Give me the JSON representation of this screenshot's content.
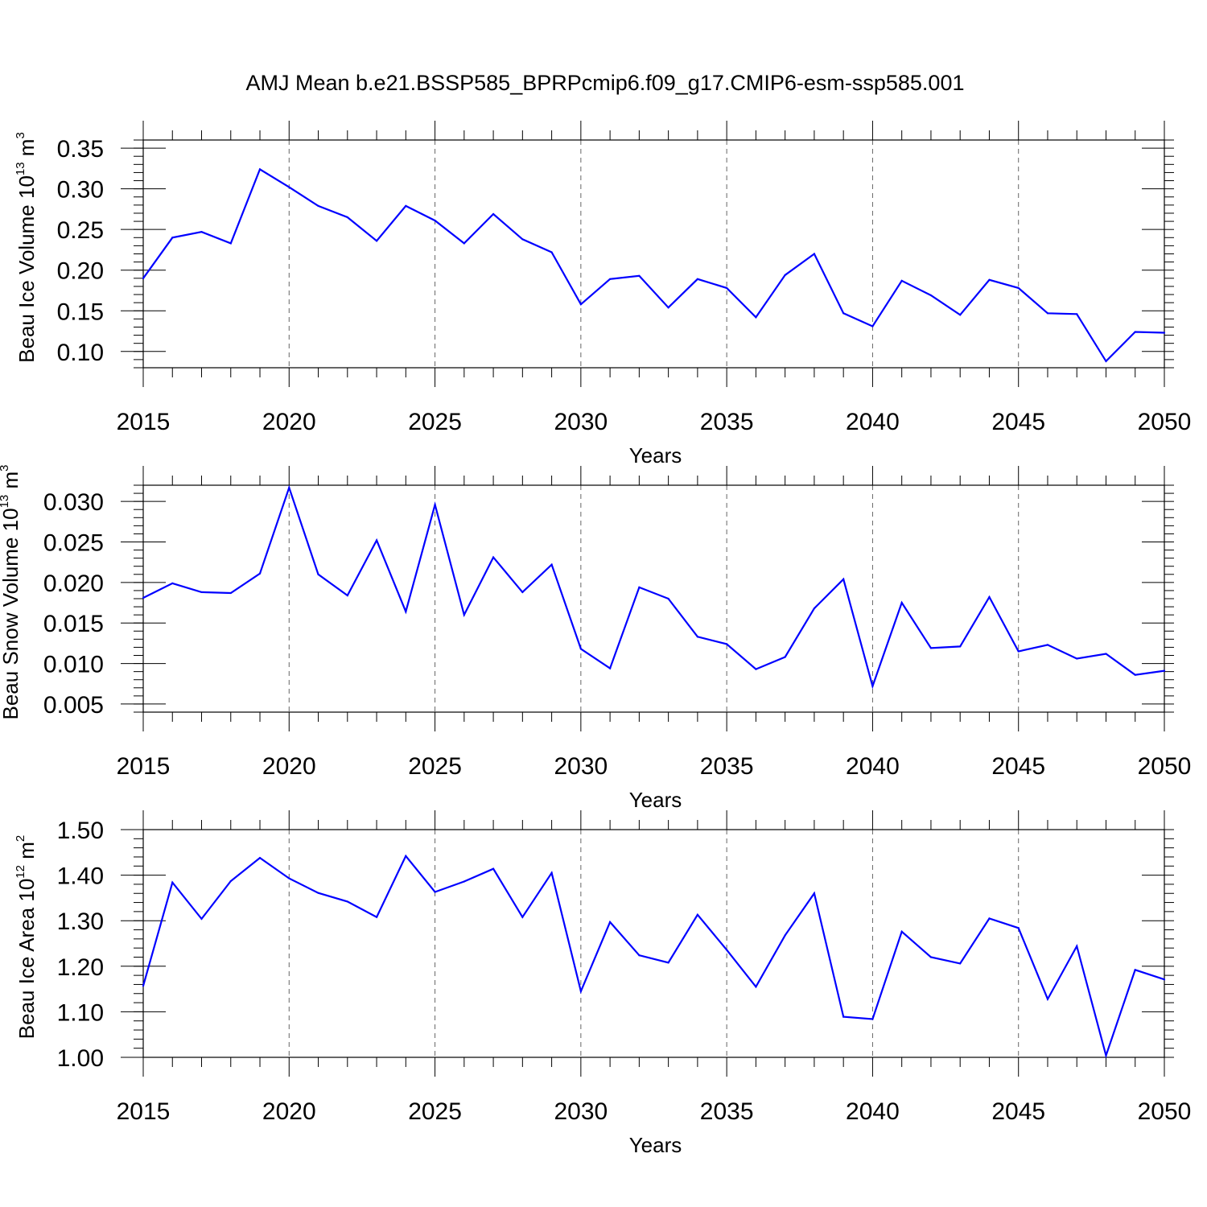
{
  "figure": {
    "title": "AMJ Mean b.e21.BSSP585_BPRPcmip6.f09_g17.CMIP6-esm-ssp585.001"
  },
  "chart_data": [
    {
      "type": "line",
      "xlabel": "Years",
      "ylabel_parts": {
        "base": "Beau Ice Volume 10",
        "exp": "13",
        "unit": " m",
        "unit_exp": "3"
      },
      "xlim": [
        2015,
        2050
      ],
      "ylim": [
        0.08,
        0.36
      ],
      "xticks": [
        2015,
        2020,
        2025,
        2030,
        2035,
        2040,
        2045,
        2050
      ],
      "xtick_labels": [
        "2015",
        "2020",
        "2025",
        "2030",
        "2035",
        "2040",
        "2045",
        "2050"
      ],
      "yticks": [
        0.1,
        0.15,
        0.2,
        0.25,
        0.3,
        0.35
      ],
      "ytick_labels": [
        "0.10",
        "0.15",
        "0.20",
        "0.25",
        "0.30",
        "0.35"
      ],
      "grid": "vertical dashed at labeled years",
      "line_color": "#0000ff",
      "x": [
        2015,
        2016,
        2017,
        2018,
        2019,
        2020,
        2021,
        2022,
        2023,
        2024,
        2025,
        2026,
        2027,
        2028,
        2029,
        2030,
        2031,
        2032,
        2033,
        2034,
        2035,
        2036,
        2037,
        2038,
        2039,
        2040,
        2041,
        2042,
        2043,
        2044,
        2045,
        2046,
        2047,
        2048,
        2049,
        2050
      ],
      "y": [
        0.19,
        0.24,
        0.247,
        0.233,
        0.324,
        0.302,
        0.279,
        0.265,
        0.236,
        0.279,
        0.261,
        0.233,
        0.269,
        0.238,
        0.222,
        0.158,
        0.189,
        0.193,
        0.154,
        0.189,
        0.178,
        0.142,
        0.194,
        0.22,
        0.147,
        0.131,
        0.187,
        0.169,
        0.145,
        0.188,
        0.178,
        0.147,
        0.146,
        0.088,
        0.124,
        0.123
      ]
    },
    {
      "type": "line",
      "xlabel": "Years",
      "ylabel_parts": {
        "base": "Beau Snow Volume 10",
        "exp": "13",
        "unit": " m",
        "unit_exp": "3"
      },
      "xlim": [
        2015,
        2050
      ],
      "ylim": [
        0.004,
        0.032
      ],
      "xticks": [
        2015,
        2020,
        2025,
        2030,
        2035,
        2040,
        2045,
        2050
      ],
      "xtick_labels": [
        "2015",
        "2020",
        "2025",
        "2030",
        "2035",
        "2040",
        "2045",
        "2050"
      ],
      "yticks": [
        0.005,
        0.01,
        0.015,
        0.02,
        0.025,
        0.03
      ],
      "ytick_labels": [
        "0.005",
        "0.010",
        "0.015",
        "0.020",
        "0.025",
        "0.030"
      ],
      "grid": "vertical dashed at labeled years",
      "line_color": "#0000ff",
      "x": [
        2015,
        2016,
        2017,
        2018,
        2019,
        2020,
        2021,
        2022,
        2023,
        2024,
        2025,
        2026,
        2027,
        2028,
        2029,
        2030,
        2031,
        2032,
        2033,
        2034,
        2035,
        2036,
        2037,
        2038,
        2039,
        2040,
        2041,
        2042,
        2043,
        2044,
        2045,
        2046,
        2047,
        2048,
        2049,
        2050
      ],
      "y": [
        0.0181,
        0.0199,
        0.0188,
        0.0187,
        0.0211,
        0.0317,
        0.021,
        0.0184,
        0.0252,
        0.0164,
        0.0296,
        0.016,
        0.0231,
        0.0188,
        0.0222,
        0.0118,
        0.0094,
        0.0194,
        0.018,
        0.0133,
        0.0124,
        0.0093,
        0.0108,
        0.0168,
        0.0204,
        0.0072,
        0.0175,
        0.0119,
        0.0121,
        0.0182,
        0.0115,
        0.0123,
        0.0106,
        0.0112,
        0.0086,
        0.0091
      ]
    },
    {
      "type": "line",
      "xlabel": "Years",
      "ylabel_parts": {
        "base": "Beau Ice Area 10",
        "exp": "12",
        "unit": " m",
        "unit_exp": "2"
      },
      "xlim": [
        2015,
        2050
      ],
      "ylim": [
        1.0,
        1.5
      ],
      "xticks": [
        2015,
        2020,
        2025,
        2030,
        2035,
        2040,
        2045,
        2050
      ],
      "xtick_labels": [
        "2015",
        "2020",
        "2025",
        "2030",
        "2035",
        "2040",
        "2045",
        "2050"
      ],
      "yticks": [
        1.0,
        1.1,
        1.2,
        1.3,
        1.4,
        1.5
      ],
      "ytick_labels": [
        "1.00",
        "1.10",
        "1.20",
        "1.30",
        "1.40",
        "1.50"
      ],
      "grid": "vertical dashed at labeled years",
      "line_color": "#0000ff",
      "x": [
        2015,
        2016,
        2017,
        2018,
        2019,
        2020,
        2021,
        2022,
        2023,
        2024,
        2025,
        2026,
        2027,
        2028,
        2029,
        2030,
        2031,
        2032,
        2033,
        2034,
        2035,
        2036,
        2037,
        2038,
        2039,
        2040,
        2041,
        2042,
        2043,
        2044,
        2045,
        2046,
        2047,
        2048,
        2049,
        2050
      ],
      "y": [
        1.157,
        1.384,
        1.304,
        1.387,
        1.438,
        1.393,
        1.361,
        1.342,
        1.308,
        1.442,
        1.363,
        1.386,
        1.414,
        1.308,
        1.405,
        1.145,
        1.297,
        1.224,
        1.208,
        1.313,
        1.236,
        1.155,
        1.268,
        1.36,
        1.089,
        1.084,
        1.276,
        1.22,
        1.206,
        1.305,
        1.284,
        1.128,
        1.244,
        1.004,
        1.192,
        1.171
      ]
    }
  ]
}
